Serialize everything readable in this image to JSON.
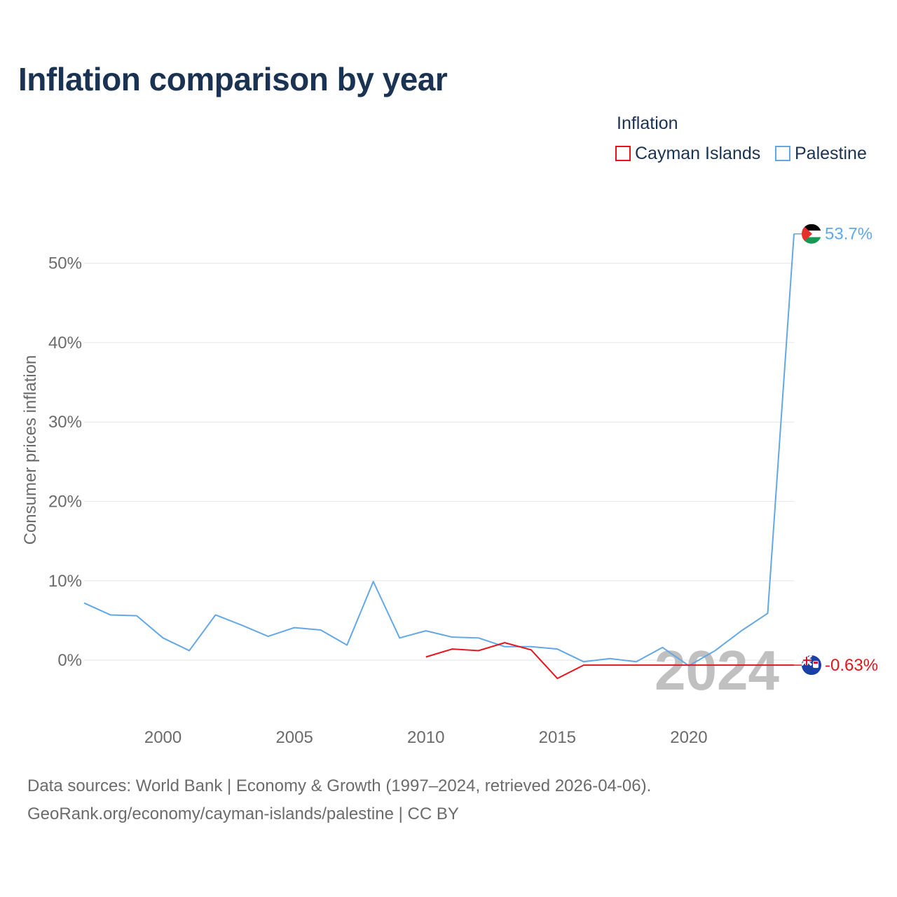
{
  "title": "Inflation comparison by year",
  "legend": {
    "title": "Inflation",
    "items": [
      {
        "label": "Cayman Islands",
        "color": "#e8141c"
      },
      {
        "label": "Palestine",
        "color": "#63a8e6"
      }
    ]
  },
  "source": {
    "line1": "Data sources: World Bank | Economy & Growth (1997–2024, retrieved 2026-04-06).",
    "line2": "GeoRank.org/economy/cayman-islands/palestine | CC BY"
  },
  "chart_data": {
    "type": "line",
    "title": "Inflation comparison by year",
    "xlabel": "",
    "ylabel": "Consumer prices inflation",
    "xlim": [
      1997,
      2024
    ],
    "ylim": [
      -6,
      58
    ],
    "x_ticks": [
      2000,
      2005,
      2010,
      2015,
      2020
    ],
    "y_ticks": [
      0,
      10,
      20,
      30,
      40,
      50
    ],
    "y_tick_labels": [
      "0%",
      "10%",
      "20%",
      "30%",
      "40%",
      "50%"
    ],
    "grid": true,
    "watermark_year": "2024",
    "series": [
      {
        "name": "Palestine",
        "color": "#63a8e6",
        "end_label": "53.7%",
        "flag_icon": "palestine-flag-icon",
        "x": [
          1997,
          1998,
          1999,
          2000,
          2001,
          2002,
          2003,
          2004,
          2005,
          2006,
          2007,
          2008,
          2009,
          2010,
          2011,
          2012,
          2013,
          2014,
          2015,
          2016,
          2017,
          2018,
          2019,
          2020,
          2021,
          2022,
          2023,
          2024
        ],
        "values": [
          7.2,
          5.7,
          5.6,
          2.8,
          1.2,
          5.7,
          4.4,
          3.0,
          4.1,
          3.8,
          1.9,
          9.9,
          2.8,
          3.7,
          2.9,
          2.8,
          1.7,
          1.7,
          1.4,
          -0.2,
          0.2,
          -0.2,
          1.6,
          -0.7,
          1.2,
          3.7,
          5.9,
          53.7
        ]
      },
      {
        "name": "Cayman Islands",
        "color": "#e8141c",
        "end_label": "-0.63%",
        "flag_icon": "cayman-islands-flag-icon",
        "x": [
          2010,
          2011,
          2012,
          2013,
          2014,
          2015,
          2016,
          2017,
          2018,
          2019,
          2020,
          2021,
          2022,
          2023,
          2024
        ],
        "values": [
          0.4,
          1.4,
          1.2,
          2.2,
          1.3,
          -2.3,
          -0.63,
          -0.63,
          -0.63,
          -0.63,
          -0.63,
          -0.63,
          -0.63,
          -0.63,
          -0.63
        ]
      }
    ]
  }
}
